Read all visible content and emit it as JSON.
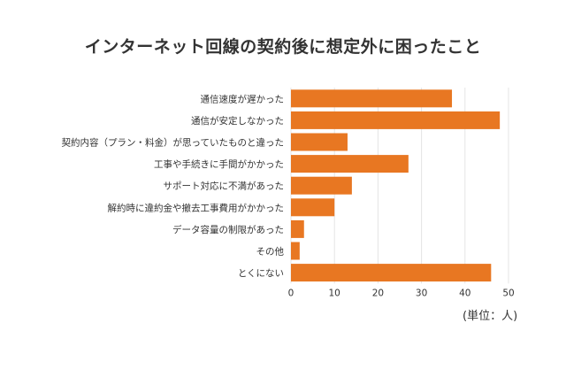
{
  "chart_data": {
    "type": "bar",
    "orientation": "horizontal",
    "title": "インターネット回線の契約後に想定外に困ったこと",
    "unit_note": "(単位：人)",
    "categories": [
      "通信速度が遅かった",
      "通信が安定しなかった",
      "契約内容（プラン・料金）が思っていたものと違った",
      "工事や手続きに手間がかかった",
      "サポート対応に不満があった",
      "解約時に違約金や撤去工事費用がかかった",
      "データ容量の制限があった",
      "その他",
      "とくにない"
    ],
    "values": [
      37,
      48,
      13,
      27,
      14,
      10,
      3,
      2,
      46
    ],
    "xlim": [
      0,
      50
    ],
    "xticks": [
      0,
      10,
      20,
      30,
      40,
      50
    ],
    "grid": true,
    "bar_color": "#e87722"
  }
}
